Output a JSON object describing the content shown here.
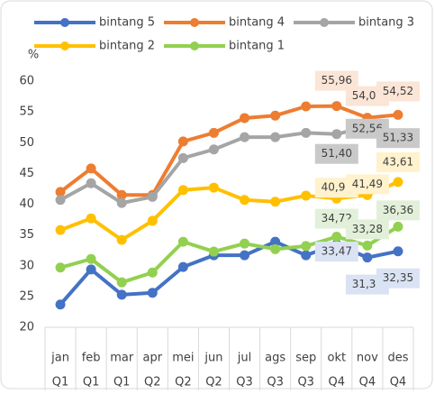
{
  "chart_data": {
    "type": "line",
    "y_label": "%",
    "categories": [
      "jan",
      "feb",
      "mar",
      "apr",
      "mei",
      "jun",
      "jul",
      "ags",
      "sep",
      "okt",
      "nov",
      "des"
    ],
    "quarters": [
      "Q1",
      "Q1",
      "Q1",
      "Q2",
      "Q2",
      "Q2",
      "Q3",
      "Q3",
      "Q3",
      "Q4",
      "Q4",
      "Q4"
    ],
    "ylim": [
      20,
      60
    ],
    "yticks": [
      20,
      25,
      30,
      35,
      40,
      45,
      50,
      55,
      60
    ],
    "legend": "top",
    "series": [
      {
        "name": "bintang 5",
        "color": "#4472c4",
        "label_fill": "#dae3f3",
        "values": [
          23.7,
          29.4,
          25.3,
          25.6,
          29.8,
          31.7,
          31.7,
          33.9,
          31.7,
          33.47,
          31.34,
          32.35
        ],
        "value_labels": [
          null,
          null,
          null,
          null,
          null,
          null,
          null,
          null,
          null,
          "33,47",
          "31,34",
          "32,35"
        ]
      },
      {
        "name": "bintang 4",
        "color": "#ed7d31",
        "label_fill": "#fbe5d6",
        "values": [
          42.0,
          45.8,
          41.5,
          41.5,
          50.2,
          51.6,
          54.0,
          54.4,
          55.9,
          55.96,
          54.05,
          54.52
        ],
        "value_labels": [
          null,
          null,
          null,
          null,
          null,
          null,
          null,
          null,
          null,
          "55,96",
          "54,05",
          "54,52"
        ]
      },
      {
        "name": "bintang 3",
        "color": "#a5a5a5",
        "label_fill": "#c9c9c9",
        "values": [
          40.7,
          43.4,
          40.2,
          41.2,
          47.5,
          48.9,
          50.9,
          50.9,
          51.6,
          51.4,
          52.56,
          51.33
        ],
        "value_labels": [
          null,
          null,
          null,
          null,
          null,
          null,
          null,
          null,
          null,
          "51,40",
          "52,56",
          "51,33"
        ]
      },
      {
        "name": "bintang 2",
        "color": "#ffc000",
        "label_fill": "#fff2cc",
        "values": [
          35.8,
          37.7,
          34.2,
          37.3,
          42.3,
          42.7,
          40.7,
          40.4,
          41.4,
          40.92,
          41.49,
          43.61
        ],
        "value_labels": [
          null,
          null,
          null,
          null,
          null,
          null,
          null,
          null,
          null,
          "40,92",
          "41,49",
          "43,61"
        ]
      },
      {
        "name": "bintang 1",
        "color": "#92d050",
        "label_fill": "#e2f0d9",
        "values": [
          29.7,
          31.1,
          27.3,
          28.9,
          33.9,
          32.3,
          33.6,
          32.7,
          33.2,
          34.72,
          33.28,
          36.36
        ],
        "value_labels": [
          null,
          null,
          null,
          null,
          null,
          null,
          null,
          null,
          null,
          "34,72",
          "33,28",
          "36,36"
        ]
      }
    ]
  }
}
